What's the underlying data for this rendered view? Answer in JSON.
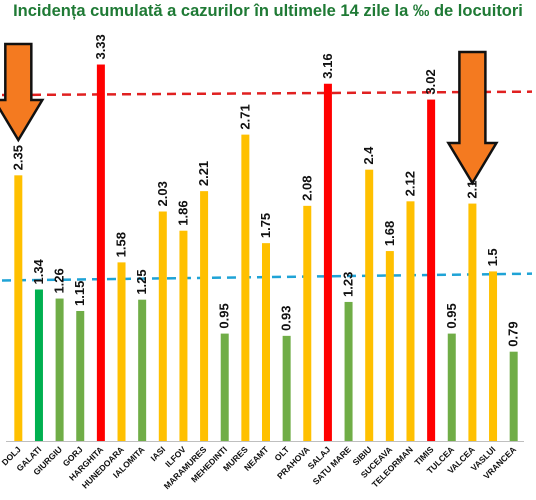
{
  "chart_data": {
    "type": "bar",
    "title": "Incidența cumulată a cazurilor în ultimele 14 zile la ‰ de locuitori",
    "xlabel": "",
    "ylabel": "",
    "ylim": [
      0,
      3.6
    ],
    "grid": false,
    "categories": [
      "DOLJ",
      "GALATI",
      "GIURGIU",
      "GORJ",
      "HARGHITA",
      "HUNEDOARA",
      "IALOMITA",
      "IASI",
      "ILFOV",
      "MARAMURES",
      "MEHEDINTI",
      "MURES",
      "NEAMT",
      "OLT",
      "PRAHOVA",
      "SALAJ",
      "SATU MARE",
      "SIBIU",
      "SUCEAVA",
      "TELEORMAN",
      "TIMIS",
      "TULCEA",
      "VALCEA",
      "VASLUI",
      "VRANCEA"
    ],
    "values": [
      2.35,
      1.34,
      1.26,
      1.15,
      3.33,
      1.58,
      1.25,
      2.03,
      1.86,
      2.21,
      0.95,
      2.71,
      1.75,
      0.93,
      2.08,
      3.16,
      1.23,
      2.4,
      1.68,
      2.12,
      3.02,
      0.95,
      2.1,
      1.5,
      0.79
    ],
    "value_labels": [
      "2.35",
      "1.34",
      "1.26",
      "1.15",
      "3.33",
      "1.58",
      "1.25",
      "2.03",
      "1.86",
      "2.21",
      "0.95",
      "2.71",
      "1.75",
      "0.93",
      "2.08",
      "3.16",
      "1.23",
      "2.4",
      "1.68",
      "2.12",
      "3.02",
      "0.95",
      "2.1",
      "1.5",
      "0.79"
    ],
    "bar_colors": [
      "#ffc000",
      "#00b050",
      "#70ad47",
      "#70ad47",
      "#ff0000",
      "#ffc000",
      "#70ad47",
      "#ffc000",
      "#ffc000",
      "#ffc000",
      "#70ad47",
      "#ffc000",
      "#ffc000",
      "#70ad47",
      "#ffc000",
      "#ff0000",
      "#70ad47",
      "#ffc000",
      "#ffc000",
      "#ffc000",
      "#ff0000",
      "#70ad47",
      "#ffc000",
      "#ffc000",
      "#70ad47"
    ],
    "reference_lines": [
      {
        "y_start": 3.06,
        "y_end": 3.09,
        "color": "#e02020",
        "style": "dashed"
      },
      {
        "y_start": 1.42,
        "y_end": 1.48,
        "color": "#1fa3d6",
        "style": "dashed"
      }
    ],
    "annotations": [
      {
        "type": "arrow-down",
        "color": "#f47a20",
        "at_category": "DOLJ"
      },
      {
        "type": "arrow-down",
        "color": "#f47a20",
        "at_category": "VALCEA"
      }
    ]
  }
}
